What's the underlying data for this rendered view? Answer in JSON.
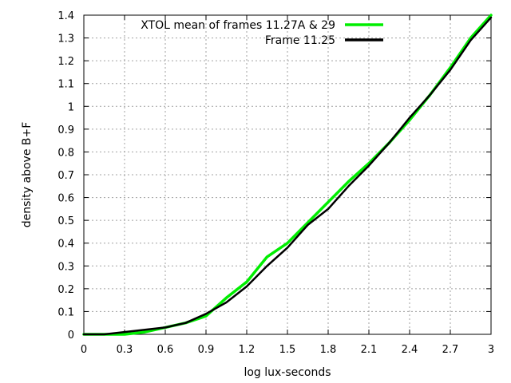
{
  "chart_data": {
    "type": "line",
    "title": "",
    "xlabel": "log lux-seconds",
    "ylabel": "density above B+F",
    "xlim": [
      0,
      3
    ],
    "ylim": [
      0,
      1.4
    ],
    "x_ticks": [
      0,
      0.3,
      0.6,
      0.9,
      1.2,
      1.5,
      1.8,
      2.1,
      2.4,
      2.7,
      3
    ],
    "x_tick_labels": [
      "0",
      "0.3",
      "0.6",
      "0.9",
      "1.2",
      "1.5",
      "1.8",
      "2.1",
      "2.4",
      "2.7",
      "3"
    ],
    "y_ticks": [
      0,
      0.1,
      0.2,
      0.3,
      0.4,
      0.5,
      0.6,
      0.7,
      0.8,
      0.9,
      1,
      1.1,
      1.2,
      1.3,
      1.4
    ],
    "y_tick_labels": [
      "0",
      "0.1",
      "0.2",
      "0.3",
      "0.4",
      "0.5",
      "0.6",
      "0.7",
      "0.8",
      "0.9",
      "1",
      "1.1",
      "1.2",
      "1.3",
      "1.4"
    ],
    "grid": true,
    "legend_position": "top-right",
    "series": [
      {
        "name": "XTOL mean of frames 11.27A & 29",
        "color": "#00ee00",
        "points": [
          [
            0.0,
            0.0
          ],
          [
            0.15,
            0.0
          ],
          [
            0.3,
            0.0
          ],
          [
            0.45,
            0.01
          ],
          [
            0.6,
            0.03
          ],
          [
            0.75,
            0.05
          ],
          [
            0.9,
            0.08
          ],
          [
            1.05,
            0.16
          ],
          [
            1.2,
            0.23
          ],
          [
            1.35,
            0.34
          ],
          [
            1.5,
            0.4
          ],
          [
            1.65,
            0.49
          ],
          [
            1.8,
            0.58
          ],
          [
            1.95,
            0.67
          ],
          [
            2.1,
            0.75
          ],
          [
            2.25,
            0.84
          ],
          [
            2.4,
            0.94
          ],
          [
            2.55,
            1.05
          ],
          [
            2.7,
            1.17
          ],
          [
            2.85,
            1.3
          ],
          [
            3.0,
            1.4
          ]
        ]
      },
      {
        "name": "Frame 11.25",
        "color": "#000000",
        "points": [
          [
            0.0,
            0.0
          ],
          [
            0.15,
            0.0
          ],
          [
            0.3,
            0.01
          ],
          [
            0.45,
            0.02
          ],
          [
            0.6,
            0.03
          ],
          [
            0.75,
            0.05
          ],
          [
            0.9,
            0.09
          ],
          [
            1.05,
            0.14
          ],
          [
            1.2,
            0.21
          ],
          [
            1.35,
            0.3
          ],
          [
            1.5,
            0.38
          ],
          [
            1.65,
            0.48
          ],
          [
            1.8,
            0.55
          ],
          [
            1.95,
            0.65
          ],
          [
            2.1,
            0.74
          ],
          [
            2.25,
            0.84
          ],
          [
            2.4,
            0.95
          ],
          [
            2.55,
            1.05
          ],
          [
            2.7,
            1.16
          ],
          [
            2.85,
            1.29
          ],
          [
            3.0,
            1.39
          ]
        ]
      }
    ]
  }
}
